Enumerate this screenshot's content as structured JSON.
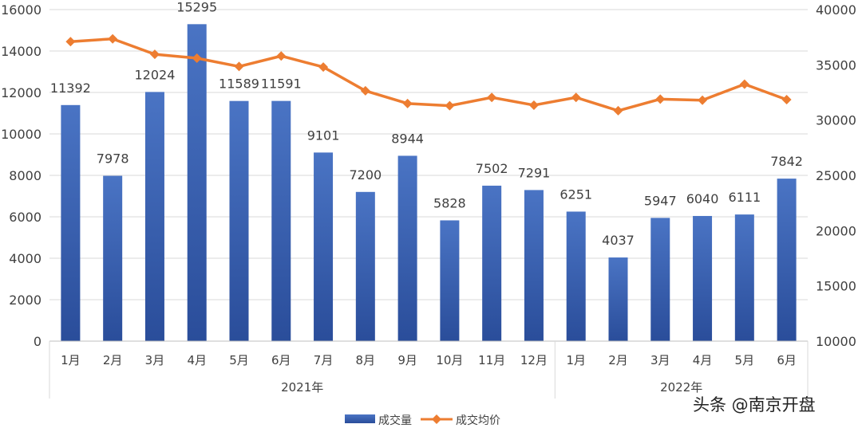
{
  "chart_data": {
    "type": "bar+line",
    "categories": [
      "1月",
      "2月",
      "3月",
      "4月",
      "5月",
      "6月",
      "7月",
      "8月",
      "9月",
      "10月",
      "11月",
      "12月",
      "1月",
      "2月",
      "3月",
      "4月",
      "5月",
      "6月"
    ],
    "year_groups": [
      {
        "label": "2021年",
        "start": 0,
        "end": 11
      },
      {
        "label": "2022年",
        "start": 12,
        "end": 17
      }
    ],
    "series": [
      {
        "name": "成交量",
        "type": "bar",
        "axis": "left",
        "color": "#2f55a4",
        "values": [
          11392,
          7978,
          12024,
          15295,
          11589,
          11591,
          9101,
          7200,
          8944,
          5828,
          7502,
          7291,
          6251,
          4037,
          5947,
          6040,
          6111,
          7842
        ],
        "labels": true
      },
      {
        "name": "成交均价",
        "type": "line",
        "axis": "right",
        "color": "#ed7d31",
        "values": [
          37100,
          37350,
          35950,
          35600,
          34850,
          35800,
          34800,
          32650,
          31500,
          31300,
          32050,
          31350,
          32050,
          30850,
          31900,
          31800,
          33250,
          31850
        ]
      }
    ],
    "left_axis": {
      "range": [
        0,
        16000
      ],
      "ticks": [
        0,
        2000,
        4000,
        6000,
        8000,
        10000,
        12000,
        14000,
        16000
      ]
    },
    "right_axis": {
      "range": [
        10000,
        40000
      ],
      "ticks": [
        10000,
        15000,
        20000,
        25000,
        30000,
        35000,
        40000
      ]
    },
    "grid": true,
    "legend": "bottom"
  },
  "watermark": "头条 @南京开盘"
}
